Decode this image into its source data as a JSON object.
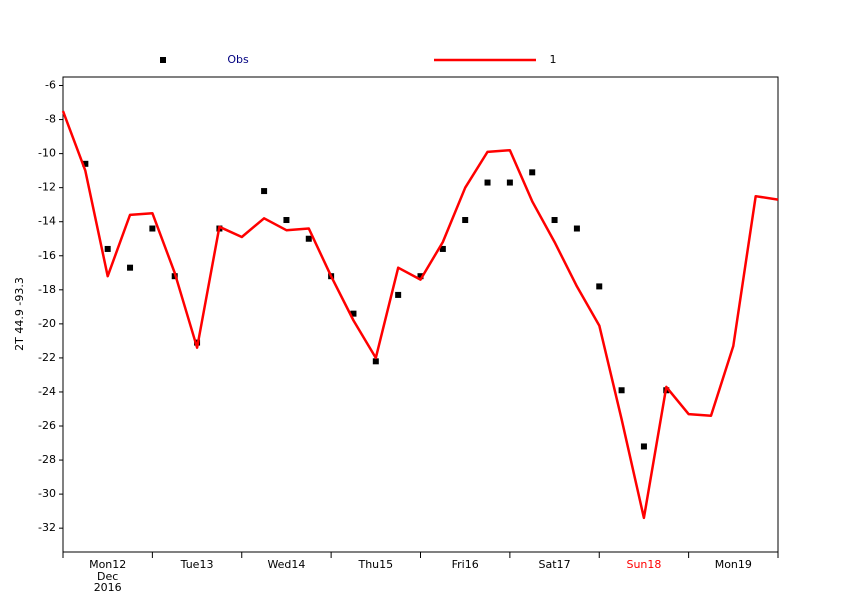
{
  "chart_data": {
    "type": "line",
    "y_label": "2T 44.9 -93.3",
    "xlim": [
      0,
      192
    ],
    "ylim": [
      -33.4,
      -5.5
    ],
    "yticks": [
      -6,
      -8,
      -10,
      -12,
      -14,
      -16,
      -18,
      -20,
      -22,
      -24,
      -26,
      -28,
      -30,
      -32
    ],
    "xticks": [
      0,
      24,
      48,
      72,
      96,
      120,
      144,
      168,
      192
    ],
    "x_labels": [
      {
        "value": 12,
        "label": "Mon12"
      },
      {
        "value": 36,
        "label": "Tue13"
      },
      {
        "value": 60,
        "label": "Wed14"
      },
      {
        "value": 84,
        "label": "Thu15"
      },
      {
        "value": 108,
        "label": "Fri16"
      },
      {
        "value": 132,
        "label": "Sat17"
      },
      {
        "value": 156,
        "label": "Sun18"
      },
      {
        "value": 180,
        "label": "Mon19"
      }
    ],
    "x_label_colors": [
      "#000000",
      "#000000",
      "#000000",
      "#000000",
      "#000000",
      "#000000",
      "#ff0000",
      "#000000"
    ],
    "x_sublabels": [
      "Dec",
      "2016"
    ],
    "legend_text_colors": [
      "#000080",
      "#000000"
    ],
    "series": [
      {
        "name": "Obs",
        "color": "#000000",
        "kind": "marker",
        "x": [
          6,
          12,
          18,
          24,
          30,
          36,
          42,
          54,
          60,
          66,
          72,
          78,
          84,
          90,
          96,
          102,
          108,
          114,
          120,
          126,
          132,
          138,
          144,
          150,
          156,
          162
        ],
        "values": [
          -10.6,
          -15.6,
          -16.7,
          -14.4,
          -17.2,
          -21.1,
          -14.4,
          -12.2,
          -13.9,
          -15.0,
          -17.2,
          -19.4,
          -22.2,
          -18.3,
          -17.2,
          -15.6,
          -13.9,
          -11.7,
          -11.7,
          -11.1,
          -13.9,
          -14.4,
          -17.8,
          -23.9,
          -27.2,
          -23.9
        ]
      },
      {
        "name": "1",
        "color": "#ff0000",
        "kind": "line",
        "x": [
          0,
          6,
          12,
          18,
          24,
          30,
          36,
          42,
          48,
          54,
          60,
          66,
          72,
          78,
          84,
          90,
          96,
          102,
          108,
          114,
          120,
          126,
          132,
          138,
          144,
          150,
          156,
          162,
          168,
          174,
          180,
          186,
          192
        ],
        "values": [
          -7.5,
          -11.0,
          -17.2,
          -13.6,
          -13.5,
          -17.0,
          -21.4,
          -14.3,
          -14.9,
          -13.8,
          -14.5,
          -14.4,
          -17.2,
          -19.8,
          -22.0,
          -16.7,
          -17.4,
          -15.2,
          -12.0,
          -9.9,
          -9.8,
          -12.8,
          -15.2,
          -17.8,
          -20.1,
          -25.6,
          -31.4,
          -23.7,
          -25.3,
          -25.4,
          -21.3,
          -12.5,
          -12.7
        ]
      }
    ]
  }
}
